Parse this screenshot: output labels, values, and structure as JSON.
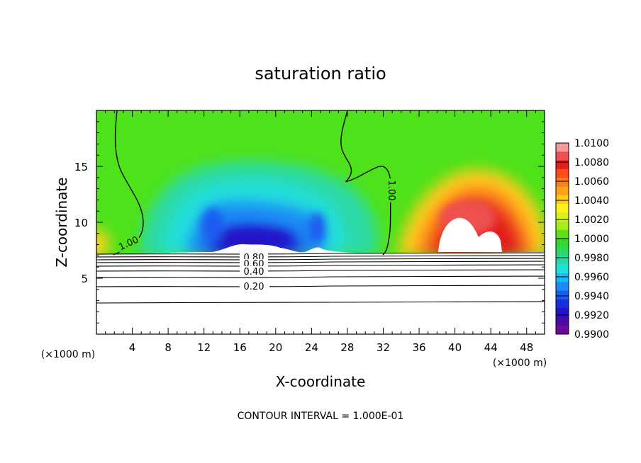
{
  "chart_data": {
    "type": "heatmap",
    "title": "saturation ratio",
    "xlabel": "X-coordinate",
    "ylabel": "Z-coordinate",
    "x_unit": "(×1000 m)",
    "y_unit": "(×1000 m)",
    "footer": "CONTOUR INTERVAL = 1.000E-01",
    "xlim": [
      0,
      50
    ],
    "ylim": [
      0,
      20
    ],
    "x_ticks": [
      4,
      8,
      12,
      16,
      20,
      24,
      28,
      32,
      36,
      40,
      44,
      48
    ],
    "y_ticks": [
      5,
      10,
      15
    ],
    "colorbar": {
      "min": 0.99,
      "max": 1.01,
      "labels": [
        "1.0100",
        "1.0080",
        "1.0060",
        "1.0040",
        "1.0020",
        "1.0000",
        "0.9980",
        "0.9960",
        "0.9940",
        "0.9920",
        "0.9900"
      ],
      "colors": [
        "#f49a9a",
        "#ee5050",
        "#e41e1e",
        "#ff4a1a",
        "#ff7c1a",
        "#ffa21a",
        "#ffcb1a",
        "#ffef1a",
        "#d7f21a",
        "#a5ee1a",
        "#5fe01a",
        "#32d82e",
        "#2cd86c",
        "#2ad9a6",
        "#24e0dc",
        "#1ab8f5",
        "#1a8cf5",
        "#1a5cf0",
        "#1a2ee0",
        "#2412c8",
        "#4a0aa6",
        "#6a0c96"
      ]
    },
    "contour_labels": [
      "1.00",
      "1.00",
      "0.80",
      "0.60",
      "0.40",
      "0.20"
    ],
    "grid": false,
    "legend": "colorbar-right"
  }
}
